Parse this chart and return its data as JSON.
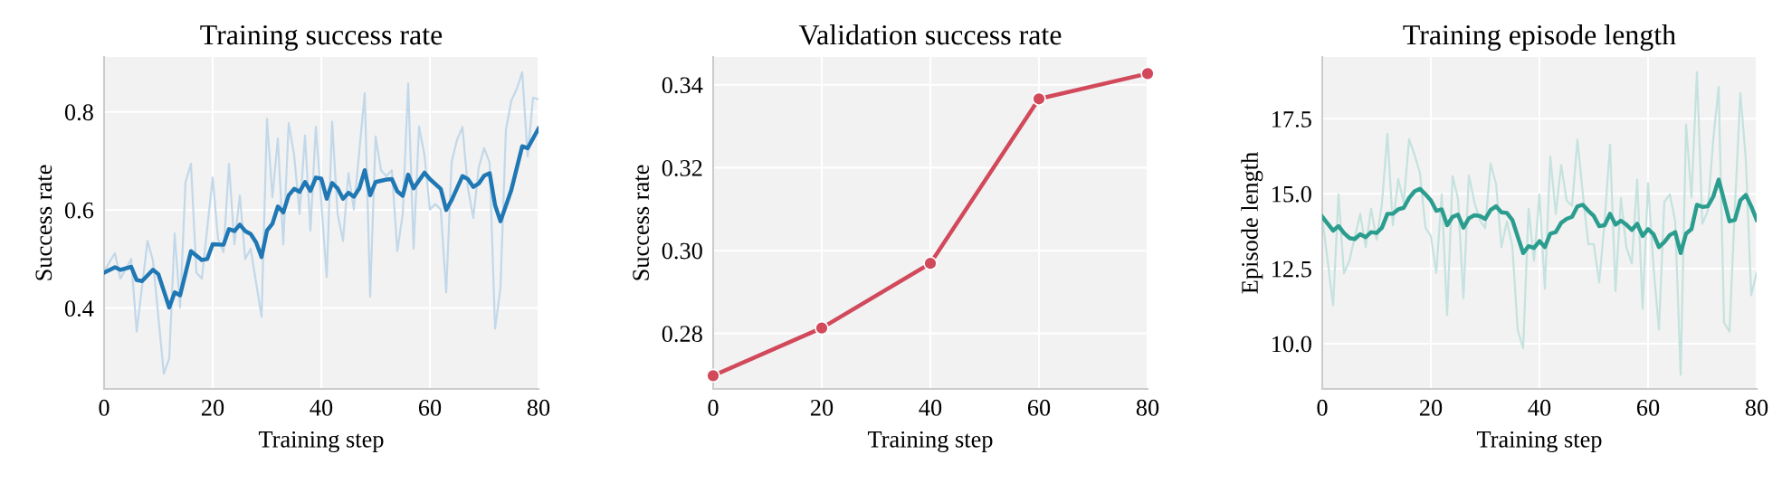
{
  "chart_data": [
    {
      "type": "line",
      "title": "Training success rate",
      "xlabel": "Training step",
      "ylabel": "Success rate",
      "xlim": [
        0,
        80
      ],
      "xticks": [
        0,
        20,
        40,
        60,
        80
      ],
      "ylim": [
        0.235,
        0.912
      ],
      "yticks": [
        0.4,
        0.6,
        0.8
      ],
      "grid": true,
      "line_style": "solid",
      "series": [
        {
          "color": "#c2d8e9",
          "x": [
            0,
            2,
            3,
            5,
            6,
            8,
            9,
            11,
            12,
            13,
            14,
            15,
            16,
            17,
            18,
            20,
            21,
            22,
            23,
            24,
            25,
            26,
            27,
            29,
            30,
            31,
            32,
            33,
            34,
            35,
            36,
            37,
            38,
            39,
            41,
            42,
            43,
            44,
            45,
            46,
            48,
            49,
            50,
            51,
            52,
            53,
            54,
            55,
            56,
            57,
            58,
            59,
            60,
            61,
            62,
            63,
            64,
            65,
            66,
            67,
            68,
            69,
            70,
            71,
            72,
            73,
            74,
            75,
            76,
            77,
            78,
            79,
            80
          ],
          "values": [
            0.475,
            0.512,
            0.46,
            0.5,
            0.352,
            0.537,
            0.497,
            0.266,
            0.297,
            0.552,
            0.401,
            0.657,
            0.694,
            0.472,
            0.46,
            0.666,
            0.54,
            0.514,
            0.694,
            0.53,
            0.629,
            0.5,
            0.521,
            0.382,
            0.786,
            0.626,
            0.746,
            0.53,
            0.777,
            0.712,
            0.592,
            0.752,
            0.558,
            0.77,
            0.463,
            0.78,
            0.592,
            0.537,
            0.675,
            0.601,
            0.838,
            0.423,
            0.75,
            0.681,
            0.669,
            0.681,
            0.516,
            0.592,
            0.858,
            0.521,
            0.77,
            0.712,
            0.601,
            0.612,
            0.601,
            0.432,
            0.697,
            0.743,
            0.769,
            0.644,
            0.584,
            0.687,
            0.726,
            0.697,
            0.358,
            0.441,
            0.764,
            0.823,
            0.847,
            0.881,
            0.709,
            0.829,
            0.826
          ]
        },
        {
          "color": "#1f77b4",
          "x": [
            0,
            2,
            3,
            5,
            6,
            7,
            9,
            10,
            12,
            13,
            14,
            16,
            18,
            19,
            20,
            22,
            23,
            24,
            25,
            26,
            27,
            28,
            29,
            30,
            31,
            32,
            33,
            34,
            35,
            36,
            37,
            38,
            39,
            40,
            41,
            42,
            43,
            44,
            45,
            46,
            47,
            48,
            49,
            50,
            52,
            53,
            54,
            55,
            56,
            57,
            59,
            60,
            62,
            63,
            64,
            66,
            67,
            68,
            69,
            70,
            71,
            72,
            73,
            75,
            77,
            78,
            80
          ],
          "values": [
            0.472,
            0.483,
            0.478,
            0.484,
            0.457,
            0.455,
            0.478,
            0.469,
            0.401,
            0.432,
            0.426,
            0.516,
            0.498,
            0.5,
            0.53,
            0.529,
            0.561,
            0.557,
            0.57,
            0.557,
            0.551,
            0.534,
            0.504,
            0.558,
            0.572,
            0.607,
            0.595,
            0.63,
            0.643,
            0.637,
            0.657,
            0.639,
            0.666,
            0.664,
            0.623,
            0.655,
            0.644,
            0.623,
            0.635,
            0.627,
            0.644,
            0.681,
            0.63,
            0.657,
            0.662,
            0.663,
            0.638,
            0.629,
            0.672,
            0.644,
            0.676,
            0.663,
            0.643,
            0.6,
            0.62,
            0.669,
            0.663,
            0.647,
            0.654,
            0.67,
            0.675,
            0.61,
            0.577,
            0.641,
            0.73,
            0.726,
            0.766
          ]
        }
      ]
    },
    {
      "type": "line",
      "title": "Validation success rate",
      "xlabel": "Training step",
      "ylabel": "Success rate",
      "xlim": [
        0,
        80
      ],
      "xticks": [
        0,
        20,
        40,
        60,
        80
      ],
      "ylim": [
        0.2666,
        0.3467
      ],
      "yticks": [
        {
          "value": 0.28,
          "label": "0.28"
        },
        {
          "value": 0.3,
          "label": "0.30"
        },
        {
          "value": 0.32,
          "label": "0.32"
        },
        {
          "value": 0.34,
          "label": "0.34"
        }
      ],
      "grid": true,
      "marker": "circle",
      "line_style": "solid",
      "series": [
        {
          "color": "#d1495b",
          "x": [
            0,
            20,
            40,
            60,
            80
          ],
          "values": [
            0.2698,
            0.2813,
            0.2969,
            0.3366,
            0.3427
          ]
        }
      ]
    },
    {
      "type": "line",
      "title": "Training episode length",
      "xlabel": "Training step",
      "ylabel": "Episode length",
      "xlim": [
        0,
        80
      ],
      "xticks": [
        0,
        20,
        40,
        60,
        80
      ],
      "ylim": [
        8.49,
        19.56
      ],
      "yticks": [
        {
          "value": 10,
          "label": "10.0"
        },
        {
          "value": 12.5,
          "label": "12.5"
        },
        {
          "value": 15,
          "label": "15.0"
        },
        {
          "value": 17.5,
          "label": "17.5"
        }
      ],
      "grid": true,
      "line_style": "solid",
      "series": [
        {
          "color": "#c4e2de",
          "x": [
            0,
            2,
            3,
            4,
            5,
            7,
            8,
            9,
            10,
            11,
            12,
            13,
            14,
            15,
            16,
            17,
            18,
            19,
            20,
            21,
            22,
            23,
            24,
            25,
            26,
            27,
            28,
            29,
            30,
            31,
            32,
            33,
            34,
            35,
            36,
            37,
            38,
            39,
            40,
            41,
            42,
            43,
            44,
            45,
            46,
            47,
            48,
            49,
            50,
            51,
            52,
            53,
            54,
            55,
            56,
            57,
            58,
            59,
            60,
            61,
            62,
            63,
            64,
            65,
            66,
            67,
            68,
            69,
            70,
            71,
            72,
            73,
            74,
            75,
            76,
            77,
            78,
            79,
            80
          ],
          "values": [
            14.23,
            11.28,
            14.98,
            12.34,
            12.77,
            14.33,
            13.22,
            14.5,
            13.47,
            14.68,
            17.0,
            13.95,
            15.49,
            14.7,
            16.82,
            16.29,
            15.69,
            13.87,
            13.59,
            12.36,
            14.98,
            10.95,
            15.59,
            14.83,
            11.51,
            15.61,
            14.73,
            14.13,
            13.85,
            16.01,
            15.33,
            13.22,
            14.08,
            13.27,
            10.45,
            9.85,
            14.5,
            12.77,
            14.98,
            11.83,
            16.24,
            14.33,
            15.96,
            14.78,
            14.6,
            16.8,
            14.98,
            13.32,
            13.32,
            12.04,
            14.08,
            16.64,
            11.76,
            14.86,
            13.22,
            12.67,
            15.47,
            11.16,
            15.36,
            12.57,
            10.47,
            14.73,
            14.98,
            14.08,
            8.96,
            17.3,
            14.88,
            19.06,
            14.0,
            14.43,
            16.8,
            18.56,
            10.7,
            10.4,
            14.58,
            18.36,
            16.14,
            11.61,
            12.36
          ]
        },
        {
          "color": "#2a9d8f",
          "x": [
            0,
            2,
            3,
            4,
            5,
            6,
            7,
            8,
            9,
            10,
            11,
            12,
            13,
            14,
            15,
            16,
            17,
            18,
            19,
            20,
            21,
            22,
            23,
            24,
            25,
            26,
            27,
            28,
            29,
            30,
            31,
            32,
            33,
            34,
            35,
            36,
            37,
            38,
            39,
            40,
            41,
            42,
            43,
            44,
            45,
            46,
            47,
            48,
            49,
            50,
            51,
            52,
            53,
            54,
            55,
            56,
            57,
            58,
            59,
            60,
            61,
            62,
            63,
            64,
            65,
            66,
            67,
            68,
            69,
            70,
            71,
            72,
            73,
            74,
            75,
            76,
            77,
            78,
            79,
            80
          ],
          "values": [
            14.23,
            13.77,
            13.92,
            13.69,
            13.52,
            13.49,
            13.65,
            13.55,
            13.72,
            13.69,
            13.87,
            14.33,
            14.33,
            14.48,
            14.53,
            14.86,
            15.08,
            15.16,
            14.98,
            14.78,
            14.43,
            14.48,
            13.95,
            14.23,
            14.3,
            13.87,
            14.18,
            14.28,
            14.26,
            14.16,
            14.46,
            14.58,
            14.38,
            14.36,
            14.13,
            13.57,
            13.02,
            13.25,
            13.19,
            13.42,
            13.22,
            13.67,
            13.72,
            14.03,
            14.16,
            14.23,
            14.58,
            14.63,
            14.43,
            14.26,
            13.92,
            13.95,
            14.33,
            13.97,
            14.1,
            13.97,
            13.79,
            14.0,
            13.59,
            13.82,
            13.65,
            13.22,
            13.39,
            13.62,
            13.72,
            13.02,
            13.67,
            13.82,
            14.63,
            14.56,
            14.58,
            14.9,
            15.47,
            14.78,
            14.08,
            14.13,
            14.78,
            14.96,
            14.58,
            14.13
          ]
        }
      ]
    }
  ]
}
